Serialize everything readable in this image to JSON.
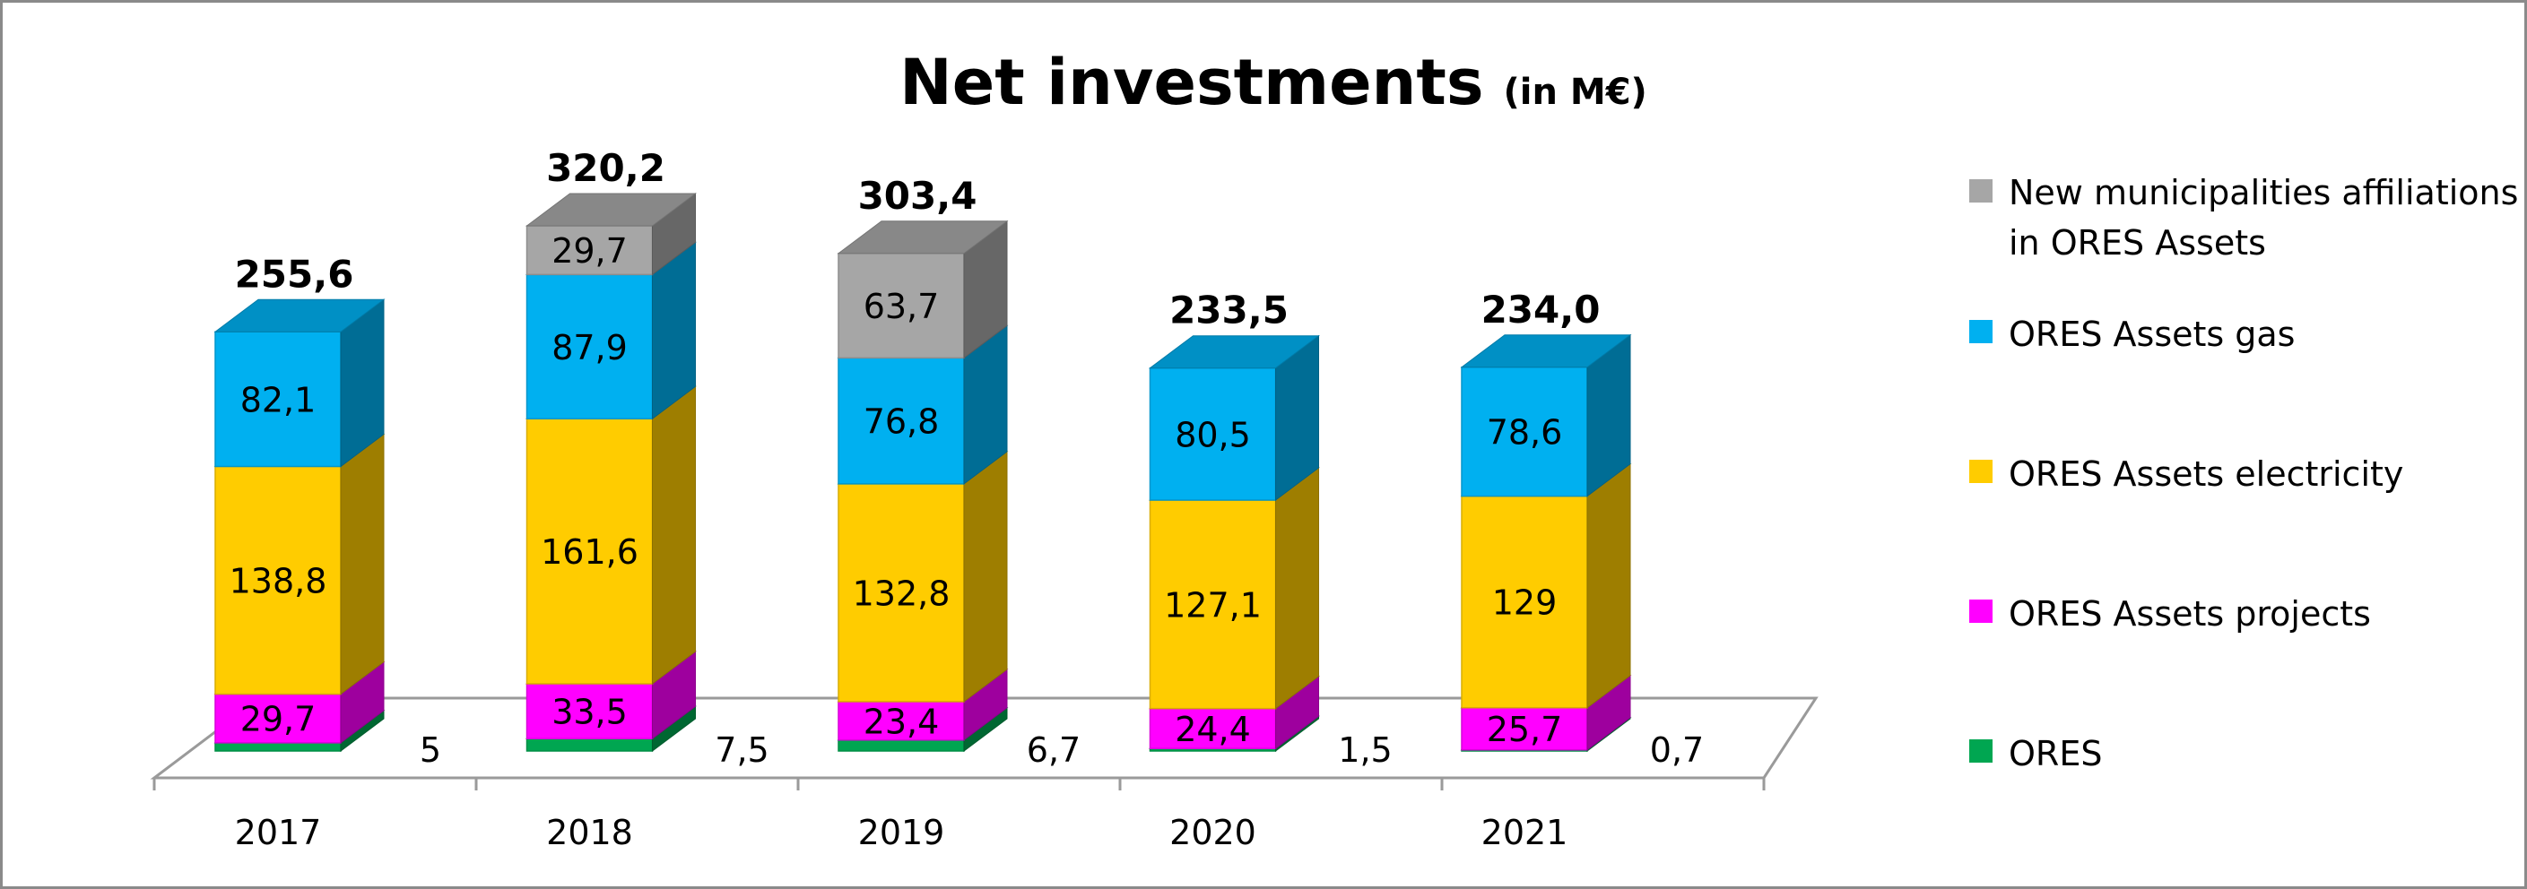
{
  "chart_data": {
    "type": "bar",
    "stacked": true,
    "three_d": true,
    "title": "Net investments",
    "title_unit": "(in M€)",
    "categories": [
      "2017",
      "2018",
      "2019",
      "2020",
      "2021"
    ],
    "series": [
      {
        "name": "ORES",
        "color": "#00a651",
        "values": [
          5,
          7.5,
          6.7,
          1.5,
          0.7
        ],
        "labels": [
          "5",
          "7,5",
          "6,7",
          "1,5",
          "0,7"
        ],
        "label_position": "outside"
      },
      {
        "name": "ORES Assets projects",
        "color": "#ff00ff",
        "values": [
          29.7,
          33.5,
          23.4,
          24.4,
          25.7
        ],
        "labels": [
          "29,7",
          "33,5",
          "23,4",
          "24,4",
          "25,7"
        ]
      },
      {
        "name": "ORES Assets electricity",
        "color": "#ffcc00",
        "values": [
          138.8,
          161.6,
          132.8,
          127.1,
          129
        ],
        "labels": [
          "138,8",
          "161,6",
          "132,8",
          "127,1",
          "129"
        ]
      },
      {
        "name": "ORES Assets gas",
        "color": "#00b0f0",
        "values": [
          82.1,
          87.9,
          76.8,
          80.5,
          78.6
        ],
        "labels": [
          "82,1",
          "87,9",
          "76,8",
          "80,5",
          "78,6"
        ]
      },
      {
        "name": "New municipalities affiliations in ORES Assets",
        "legend_lines": [
          "New municipalities affiliations",
          "in ORES Assets"
        ],
        "color": "#a6a6a6",
        "values": [
          0,
          29.7,
          63.7,
          0,
          0
        ],
        "labels": [
          "",
          "29,7",
          "63,7",
          "",
          ""
        ]
      }
    ],
    "totals": [
      "255,6",
      "320,2",
      "303,4",
      "233,5",
      "234,0"
    ],
    "totals_values": [
      255.6,
      320.2,
      303.4,
      233.5,
      234.0
    ],
    "legend_placement": "right",
    "legend_order": [
      4,
      3,
      2,
      1,
      0
    ],
    "grid": false,
    "ylim": [
      0,
      340
    ]
  }
}
